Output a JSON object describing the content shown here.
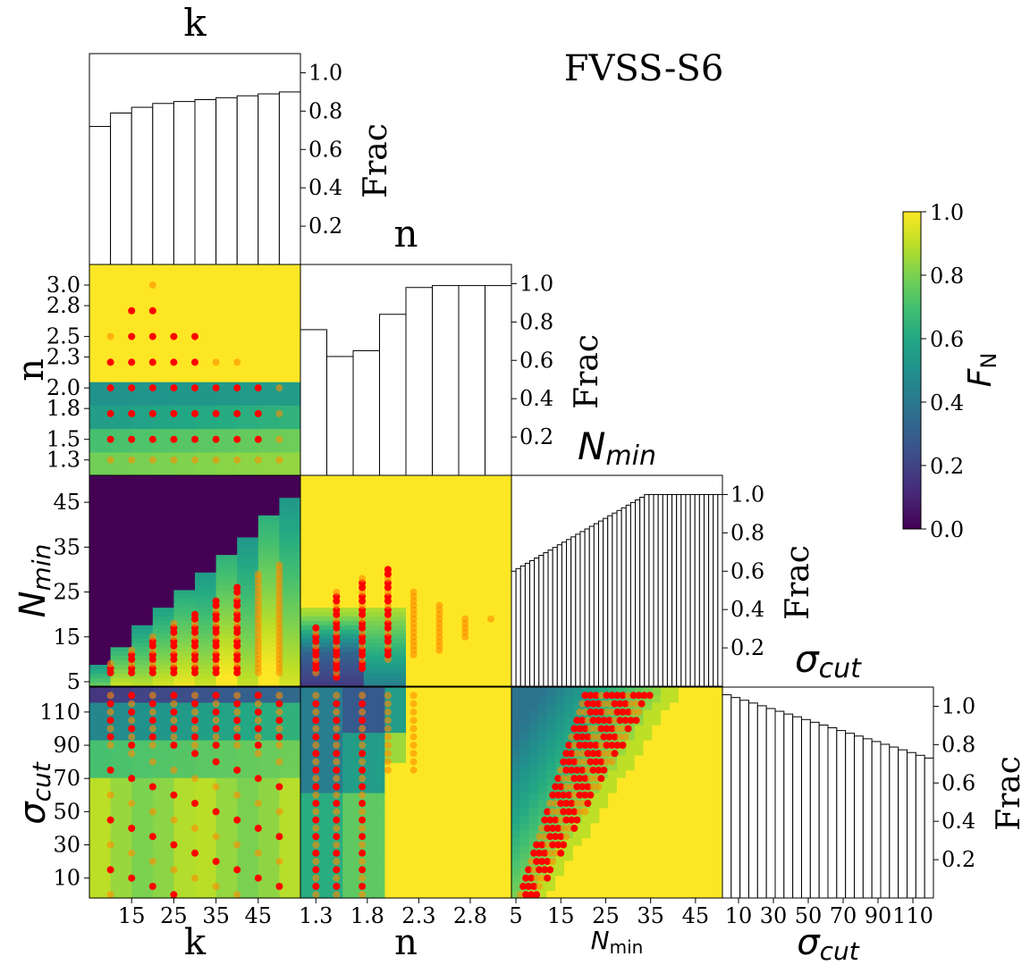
{
  "figure_title": "FVSS-S6",
  "colorbar": {
    "label": "F",
    "label_sub": "N",
    "ticks": [
      "0.0",
      "0.2",
      "0.4",
      "0.6",
      "0.8",
      "1.0"
    ],
    "range": [
      0,
      1
    ]
  },
  "chart_data": [
    {
      "type": "bar",
      "panel": "hist-k",
      "title": "k",
      "ylabel": "Frac",
      "ylim": [
        0,
        1.1
      ],
      "yticks": [
        "0.2",
        "0.4",
        "0.6",
        "0.8",
        "1.0"
      ],
      "values": [
        0.72,
        0.79,
        0.82,
        0.84,
        0.85,
        0.86,
        0.87,
        0.88,
        0.89,
        0.9
      ]
    },
    {
      "type": "bar",
      "panel": "hist-n",
      "title": "n",
      "ylabel": "Frac",
      "ylim": [
        0,
        1.1
      ],
      "yticks": [
        "0.2",
        "0.4",
        "0.6",
        "0.8",
        "1.0"
      ],
      "values": [
        0.76,
        0.62,
        0.65,
        0.84,
        0.98,
        0.99,
        0.99,
        0.99
      ]
    },
    {
      "type": "bar",
      "panel": "hist-nmin",
      "title": "N",
      "title_sub": "min",
      "ylabel": "Frac",
      "ylim": [
        0,
        1.1
      ],
      "yticks": [
        "0.2",
        "0.4",
        "0.6",
        "0.8",
        "1.0"
      ],
      "start": 0.6,
      "end": 1.0,
      "bins": 46
    },
    {
      "type": "bar",
      "panel": "hist-sigma",
      "title": "σ",
      "title_sub": "cut",
      "ylabel": "Frac",
      "ylim": [
        0,
        1.1
      ],
      "yticks": [
        "0.2",
        "0.4",
        "0.6",
        "0.8",
        "1.0"
      ],
      "start": 1.06,
      "end": 0.73,
      "bins": 24
    },
    {
      "type": "heatmap",
      "panel": "k-vs-n",
      "x": "k",
      "y": "n",
      "xlim": [
        5,
        55
      ],
      "ylim": [
        1.15,
        3.2
      ],
      "yticks": [
        "1.3",
        "1.5",
        "1.8",
        "2.0",
        "2.3",
        "2.5",
        "2.8",
        "3.0"
      ]
    },
    {
      "type": "heatmap",
      "panel": "k-vs-nmin",
      "x": "k",
      "y": "N_min",
      "xlim": [
        5,
        55
      ],
      "ylim": [
        4,
        51
      ],
      "yticks": [
        "5",
        "15",
        "25",
        "35",
        "45"
      ]
    },
    {
      "type": "heatmap",
      "panel": "n-vs-nmin",
      "x": "n",
      "y": "N_min",
      "xlim": [
        1.15,
        3.2
      ],
      "ylim": [
        4,
        51
      ]
    },
    {
      "type": "heatmap",
      "panel": "k-vs-sigma",
      "x": "k",
      "y": "σ_cut",
      "xlim": [
        5,
        55
      ],
      "ylim": [
        -2,
        125
      ],
      "yticks": [
        "10",
        "30",
        "50",
        "70",
        "90",
        "110"
      ],
      "xticks": [
        "15",
        "25",
        "35",
        "45"
      ]
    },
    {
      "type": "heatmap",
      "panel": "n-vs-sigma",
      "x": "n",
      "y": "σ_cut",
      "xlim": [
        1.15,
        3.2
      ],
      "ylim": [
        -2,
        125
      ],
      "xticks": [
        "1.3",
        "1.8",
        "2.3",
        "2.8"
      ]
    },
    {
      "type": "heatmap",
      "panel": "nmin-vs-sigma",
      "x": "N_min",
      "y": "σ_cut",
      "xlim": [
        4,
        51
      ],
      "ylim": [
        -2,
        125
      ],
      "xticks": [
        "5",
        "15",
        "25",
        "35",
        "45"
      ]
    }
  ],
  "axis_labels": {
    "k": "k",
    "n": "n",
    "nmin": "N",
    "nmin_sub": "min",
    "nmin_sans_sub": "min",
    "sigma": "σ",
    "sigma_sub": "cut"
  },
  "sigma_xticks": [
    "10",
    "30",
    "50",
    "70",
    "90",
    "110"
  ],
  "colors": {
    "points": "#ff0000",
    "points_alt": "#ff8c00",
    "bar_edge": "#000000"
  }
}
